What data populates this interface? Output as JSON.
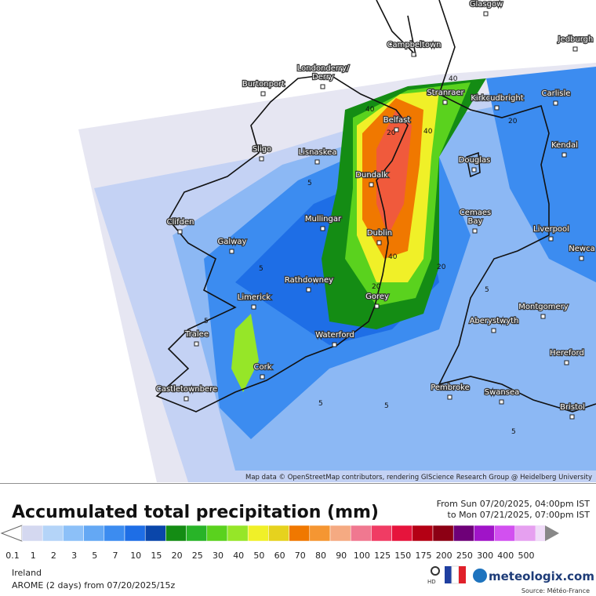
{
  "map": {
    "cities": [
      "Glasgow",
      "Campbeltown",
      "Jedburgh",
      "Londonderry/\nDerry",
      "Burtonport",
      "Stranraer",
      "Kirkcudbright",
      "Carlisle",
      "Belfast",
      "Sligo",
      "Lisnaskea",
      "Kendal",
      "Douglas",
      "Dundalk",
      "Clifden",
      "Mullingar",
      "Cemaes\nBay",
      "Liverpool",
      "Dublin",
      "Galway",
      "Rathdowney",
      "Newca",
      "Limerick",
      "Gorey",
      "Montgomery",
      "Aberystwyth",
      "Tralee",
      "Waterford",
      "Hereford",
      "Cork",
      "Pembroke",
      "Swansea",
      "Castletownbere",
      "Bristol"
    ],
    "contour_labels": [
      "40",
      "40",
      "40",
      "40",
      "20",
      "20",
      "5",
      "5",
      "5",
      "20",
      "20",
      "5",
      "5",
      "5",
      "5"
    ],
    "attribution": "Map data © OpenStreetMap contributors, rendering GIScience Research Group @ Heidelberg University"
  },
  "legend": {
    "title": "Accumulated total precipitation (mm)",
    "from": "From Sun 07/20/2025, 04:00pm IST",
    "to": "to Mon 07/21/2025, 07:00pm IST",
    "ticks": [
      0.1,
      1,
      2,
      3,
      5,
      7,
      10,
      15,
      20,
      25,
      30,
      40,
      50,
      60,
      70,
      80,
      90,
      100,
      125,
      150,
      175,
      200,
      250,
      300,
      400,
      500
    ],
    "colors": [
      "#d4d8f0",
      "#b4d4f8",
      "#8cc0f8",
      "#64a8f4",
      "#3c8cf0",
      "#1e6ee6",
      "#0a46aa",
      "#148c14",
      "#28b428",
      "#5ad21e",
      "#96e628",
      "#f0f028",
      "#e6d21e",
      "#f07800",
      "#f59632",
      "#f5aa82",
      "#f07890",
      "#f03c64",
      "#e6143c",
      "#b40014",
      "#8c0014",
      "#6e0078",
      "#a014c8",
      "#d250f0",
      "#e6a0f0",
      "#f0dcf8"
    ]
  },
  "footer": {
    "region": "Ireland",
    "model": "AROME (2 days) from 07/20/2025/15z",
    "brand": "meteologix.com",
    "source": "Source: Météo-France",
    "hd": "HD"
  }
}
